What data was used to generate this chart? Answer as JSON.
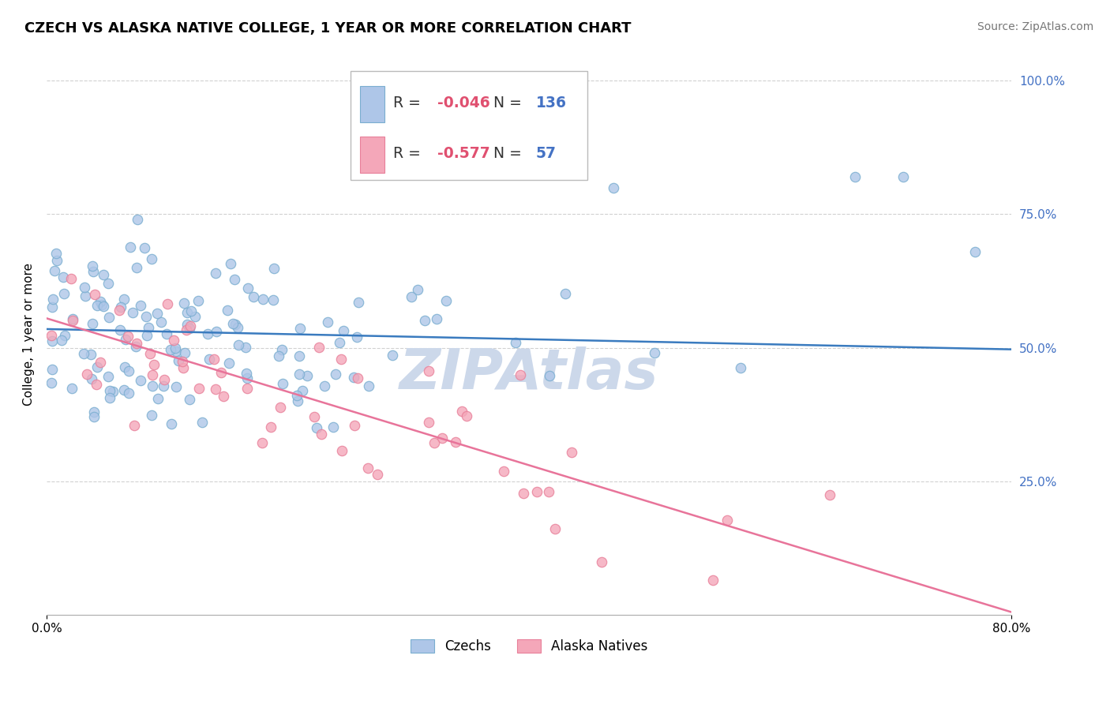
{
  "title": "CZECH VS ALASKA NATIVE COLLEGE, 1 YEAR OR MORE CORRELATION CHART",
  "source_text": "Source: ZipAtlas.com",
  "ylabel": "College, 1 year or more",
  "xlim": [
    0.0,
    0.8
  ],
  "ylim": [
    0.0,
    1.05
  ],
  "ytick_labels": [
    "25.0%",
    "50.0%",
    "75.0%",
    "100.0%"
  ],
  "ytick_positions": [
    0.25,
    0.5,
    0.75,
    1.0
  ],
  "legend_entries": [
    {
      "label": "Czechs",
      "color": "#aec6e8",
      "edge": "#7aaed0",
      "R": "-0.046",
      "N": "136"
    },
    {
      "label": "Alaska Natives",
      "color": "#f4a7b9",
      "edge": "#e8809a",
      "R": "-0.577",
      "N": " 57"
    }
  ],
  "watermark": "ZIPAtlas",
  "blue_line_x": [
    0.0,
    0.8
  ],
  "blue_line_y": [
    0.535,
    0.497
  ],
  "pink_line_x": [
    0.0,
    0.8
  ],
  "pink_line_y": [
    0.555,
    0.005
  ],
  "blue_line_color": "#3a7bbf",
  "pink_line_color": "#e8749a",
  "blue_dot_color": "#aec6e8",
  "blue_dot_edge_color": "#7aaed0",
  "pink_dot_color": "#f4a7b9",
  "pink_dot_edge_color": "#e8809a",
  "grid_color": "#cccccc",
  "watermark_color": "#ccd8ea",
  "title_fontsize": 13,
  "source_fontsize": 10,
  "ylabel_fontsize": 11,
  "ytick_color": "#4472c4",
  "legend_r_color": "#e05070",
  "legend_n_color": "#4472c4",
  "legend_label_color": "#333333"
}
